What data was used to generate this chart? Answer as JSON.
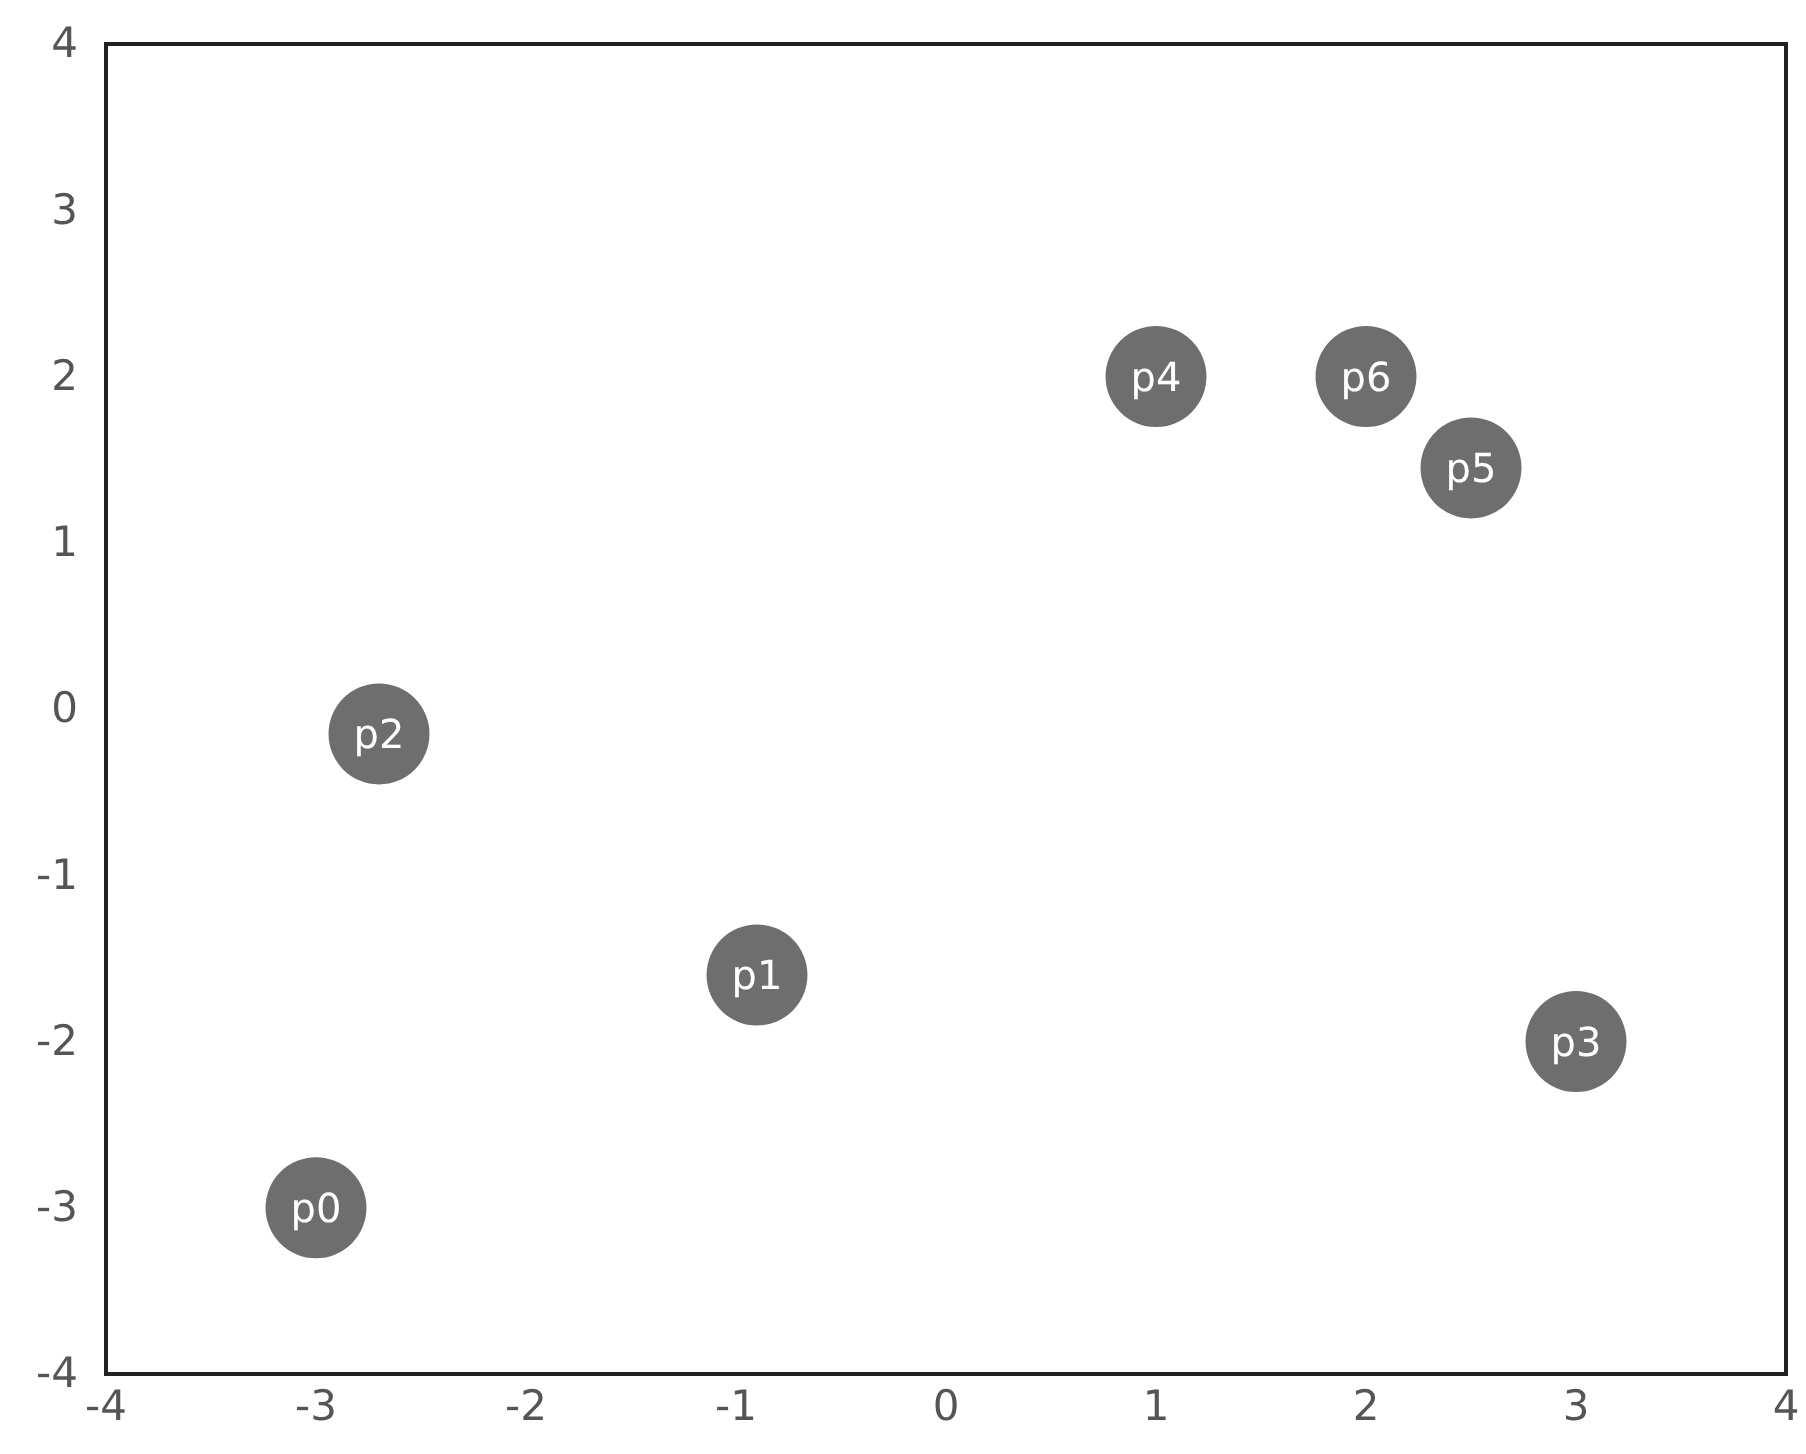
{
  "chart_data": {
    "type": "scatter",
    "marker": "circle",
    "grid": false,
    "x": [
      -3,
      -0.9,
      -2.7,
      3,
      1,
      2.5,
      2
    ],
    "values": [
      -3,
      -1.6,
      -0.15,
      -2,
      2,
      1.45,
      2
    ],
    "color": "#6e6e6e",
    "xlim": [
      -4,
      4
    ],
    "xticks": [
      -4,
      -3,
      -2,
      -1,
      0,
      1,
      2,
      3,
      4
    ],
    "ylim": [
      -4,
      4
    ],
    "yticks": [
      -4,
      -3,
      -2,
      -1,
      0,
      1,
      2,
      3,
      4
    ],
    "annotations": [
      {
        "text": "p0",
        "x": -3,
        "y": -3
      },
      {
        "text": "p1",
        "x": -0.9,
        "y": -1.6
      },
      {
        "text": "p2",
        "x": -2.7,
        "y": -0.15
      },
      {
        "text": "p3",
        "x": 3,
        "y": -2
      },
      {
        "text": "p4",
        "x": 1,
        "y": 2
      },
      {
        "text": "p5",
        "x": 2.5,
        "y": 1.45
      },
      {
        "text": "p6",
        "x": 2,
        "y": 2
      }
    ]
  }
}
